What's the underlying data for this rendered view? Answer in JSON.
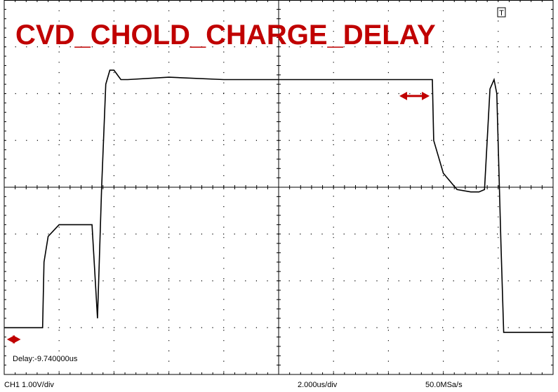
{
  "title": "CVD_CHOLD_CHARGE_DELAY",
  "trigger_marker": "T",
  "delay_readout": "Delay:-9.740000us",
  "status_bar": {
    "channel_scale": "CH1 1.00V/div",
    "time_scale": "2.000us/div",
    "sample_rate": "50.0MSa/s"
  },
  "colors": {
    "title": "#c00000",
    "trace": "#000000",
    "grid": "#000000",
    "arrows": "#c00000"
  },
  "chart_data": {
    "type": "line",
    "title": "CVD_CHOLD_CHARGE_DELAY",
    "xlabel": "",
    "ylabel": "",
    "x_unit": "us",
    "y_unit": "V",
    "xlim": [
      -10,
      10
    ],
    "ylim": [
      -4,
      4
    ],
    "grid": true,
    "divisions": {
      "x": 10,
      "y": 8
    },
    "series": [
      {
        "x": [
          -10.0,
          -8.6,
          -8.55,
          -8.4,
          -8.0,
          -7.9,
          -6.9,
          -6.8,
          -6.6,
          -6.45,
          -6.3,
          -6.15,
          -6.0,
          -5.75,
          -5.5,
          -4.0,
          -2.0,
          0.0,
          2.0,
          4.0,
          5.6,
          5.65,
          6.0,
          6.5,
          7.0,
          7.3,
          7.5,
          7.7,
          7.85,
          7.95,
          8.1,
          8.2,
          8.5,
          8.7,
          10.0
        ],
        "y": [
          -3.0,
          -3.0,
          -1.6,
          -1.05,
          -0.8,
          -0.8,
          -0.8,
          -0.8,
          -2.8,
          0.0,
          2.2,
          2.5,
          2.5,
          2.3,
          2.3,
          2.35,
          2.3,
          2.3,
          2.3,
          2.3,
          2.3,
          1.0,
          0.3,
          -0.05,
          -0.1,
          -0.1,
          -0.05,
          2.1,
          2.3,
          2.0,
          -1.2,
          -3.1,
          -3.1,
          -3.1,
          -3.1
        ]
      }
    ],
    "annotations": [
      {
        "type": "double-arrow",
        "x_start": -9.9,
        "x_end": -9.4,
        "y": -3.25
      },
      {
        "type": "double-arrow",
        "x_start": 4.4,
        "x_end": 5.5,
        "y": 1.95
      }
    ]
  }
}
